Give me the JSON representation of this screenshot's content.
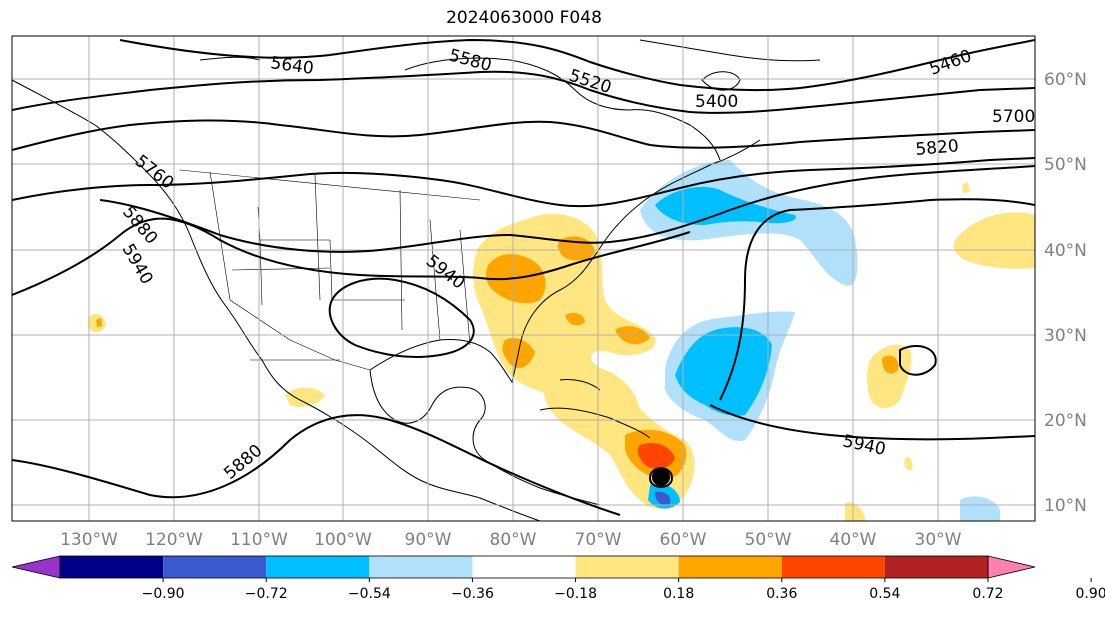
{
  "title": "2024063000 F048",
  "lon_ticks": [
    "130°W",
    "120°W",
    "110°W",
    "100°W",
    "90°W",
    "80°W",
    "70°W",
    "60°W",
    "50°W",
    "40°W",
    "30°W"
  ],
  "lat_ticks": [
    "10°N",
    "20°N",
    "30°N",
    "40°N",
    "50°N",
    "60°N"
  ],
  "contour_labels": [
    "5640",
    "5580",
    "5520",
    "5400",
    "5460",
    "5700",
    "5820",
    "5760",
    "5880",
    "5940",
    "5940",
    "5880",
    "5940"
  ],
  "colorbar": {
    "ticks": [
      "−0.90",
      "−0.72",
      "−0.54",
      "−0.36",
      "−0.18",
      "0.18",
      "0.36",
      "0.54",
      "0.72",
      "0.90"
    ],
    "colors": [
      "#9933cc",
      "#00008b",
      "#3a5bd0",
      "#00bfff",
      "#b0e0fa",
      "#ffffff",
      "#ffe680",
      "#ffa500",
      "#ff4500",
      "#b22222",
      "#ff80b0"
    ]
  },
  "colors": {
    "land_line": "#000000",
    "grid": "#b0b0b0",
    "contour": "#000000"
  }
}
